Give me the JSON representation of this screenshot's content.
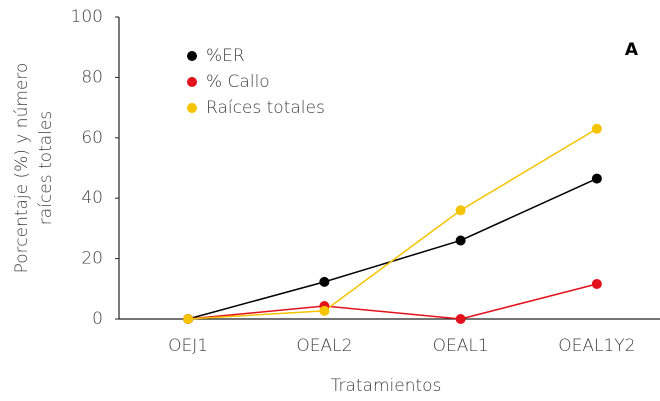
{
  "chart_data": {
    "type": "line",
    "categories": [
      "OEJ1",
      "OEAL2",
      "OEAL1",
      "OEAL1Y2"
    ],
    "series": [
      {
        "name": "%ER",
        "color": "#000000",
        "values": [
          0,
          12.3,
          26,
          46.5
        ]
      },
      {
        "name": "% Callo",
        "color": "#e3111b",
        "values": [
          0,
          4.3,
          0,
          11.6
        ]
      },
      {
        "name": "Raíces totales",
        "color": "#f5c400",
        "values": [
          0,
          2.7,
          36,
          63
        ]
      }
    ],
    "ylim": [
      0,
      100
    ],
    "yticks": [
      0,
      20,
      40,
      60,
      80,
      100
    ],
    "xlabel": "Tratamientos",
    "ylabel": [
      "Porcentaje (%) y número",
      "raíces totales"
    ],
    "annotation": "A",
    "grid": false,
    "legend": "upper left"
  }
}
